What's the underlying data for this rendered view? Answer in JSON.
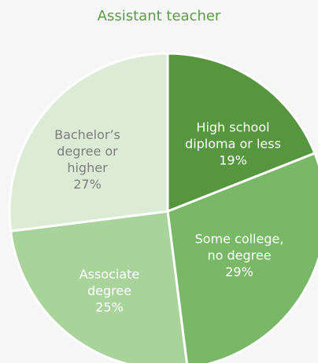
{
  "chart_data": {
    "type": "pie",
    "title": "Assistant teacher",
    "categories": [
      "High school diploma or less",
      "Some college, no degree",
      "Associate degree",
      "Bachelor’s degree or higher"
    ],
    "values": [
      19,
      29,
      25,
      27
    ],
    "value_labels": [
      "19%",
      "29%",
      "25%",
      "27%"
    ],
    "colors": [
      "#55963f",
      "#78b866",
      "#a8d39a",
      "#dcebd5"
    ]
  }
}
